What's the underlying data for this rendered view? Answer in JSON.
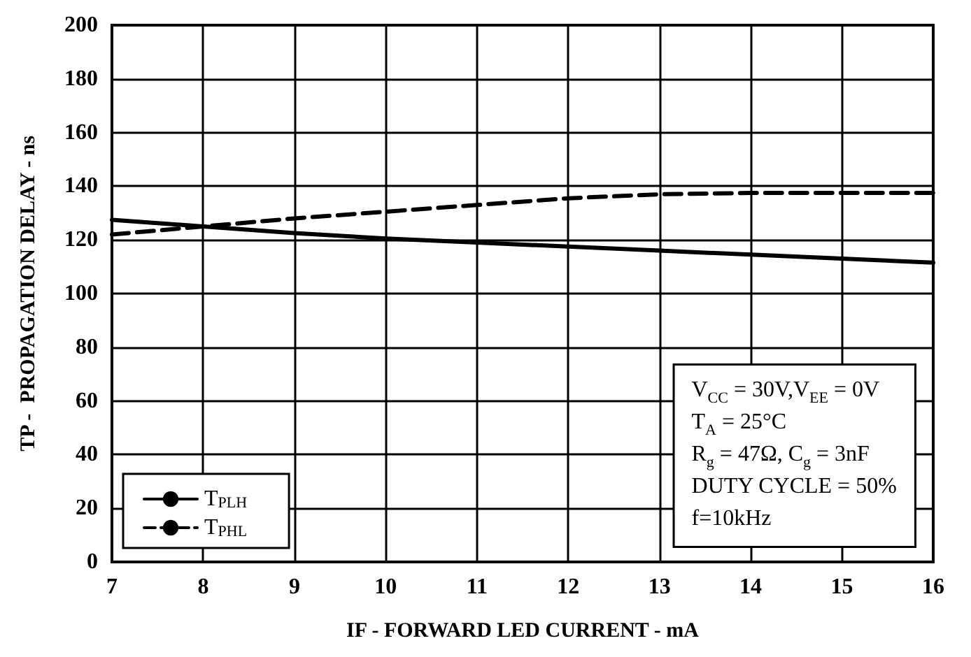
{
  "chart_data": {
    "type": "line",
    "xlabel": "IF - FORWARD LED CURRENT - mA",
    "ylabel": "TP -  PROPAGATION DELAY - ns",
    "x": [
      7,
      8,
      9,
      10,
      11,
      12,
      13,
      14,
      15,
      16
    ],
    "series": [
      {
        "name": "T$_{PLH}$",
        "color": "#000000",
        "line_style": "solid",
        "values": [
          127.5,
          125,
          122.5,
          120.5,
          119,
          117.5,
          116,
          114.5,
          113,
          111.5
        ]
      },
      {
        "name": "T$_{PHL}$",
        "color": "#000000",
        "line_style": "dashed",
        "values": [
          122,
          125,
          128,
          130.5,
          133,
          135.5,
          137,
          137.5,
          137.5,
          137.5
        ]
      }
    ],
    "xlim": [
      7,
      16
    ],
    "xticks": [
      7,
      8,
      9,
      10,
      11,
      12,
      13,
      14,
      15,
      16
    ],
    "ylim": [
      0,
      200
    ],
    "yticks": [
      0,
      20,
      40,
      60,
      80,
      100,
      120,
      140,
      160,
      180,
      200
    ],
    "grid": true,
    "legend": "bottom left",
    "marker": "none",
    "annotations": [
      "V$_{CC}$ = 30V,V$_{EE}$ = 0V\nT$_{A}$ = 25°C\nR$_{g}$ = 47Ω, C$_{g}$ = 3nF\nDUTY CYCLE = 50%\nf=10kHz"
    ]
  }
}
